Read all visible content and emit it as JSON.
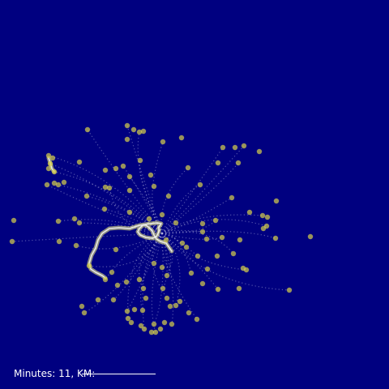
{
  "legend": {
    "minutes_label": "Minutes:",
    "minutes_value": "11",
    "km_label": "KM:"
  },
  "colors": {
    "background": "#000080",
    "marker": "#d8d24a",
    "track": "#b8b8e0",
    "highlight": "#ffff80",
    "text": "#ffffff"
  }
}
